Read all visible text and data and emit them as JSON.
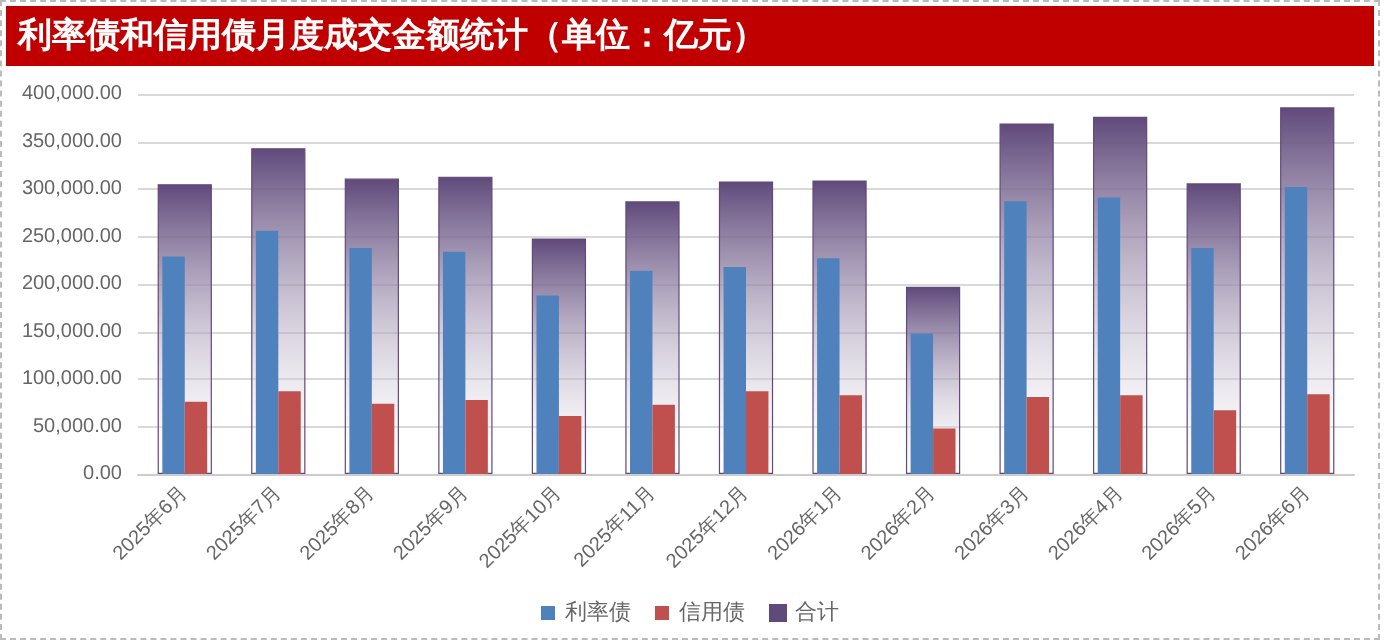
{
  "chart_data": {
    "type": "bar",
    "title": "利率债和信用债月度成交金额统计（单位：亿元）",
    "categories": [
      "2025年6月",
      "2025年7月",
      "2025年8月",
      "2025年9月",
      "2025年10月",
      "2025年11月",
      "2025年12月",
      "2026年1月",
      "2026年2月",
      "2026年3月",
      "2026年4月",
      "2026年5月",
      "2026年6月"
    ],
    "series": [
      {
        "name": "利率债",
        "color": "#4f81bd",
        "values": [
          229000,
          256000,
          238000,
          234000,
          188000,
          214000,
          218000,
          227000,
          148000,
          287000,
          291000,
          238000,
          302000
        ]
      },
      {
        "name": "信用债",
        "color": "#c0504d",
        "values": [
          76000,
          87000,
          74000,
          78000,
          61000,
          73000,
          87000,
          83000,
          48000,
          81000,
          83000,
          67000,
          84000
        ]
      },
      {
        "name": "合计",
        "color": "#604a7b",
        "values": [
          305000,
          343000,
          311000,
          313000,
          248000,
          287000,
          308000,
          309000,
          197000,
          369000,
          376000,
          306000,
          386000
        ]
      }
    ],
    "ylim": [
      0,
      400000
    ],
    "yticks": [
      {
        "value": 0,
        "label": "0.00"
      },
      {
        "value": 50000,
        "label": "50,000.00"
      },
      {
        "value": 100000,
        "label": "100,000.00"
      },
      {
        "value": 150000,
        "label": "150,000.00"
      },
      {
        "value": 200000,
        "label": "200,000.00"
      },
      {
        "value": 250000,
        "label": "250,000.00"
      },
      {
        "value": 300000,
        "label": "300,000.00"
      },
      {
        "value": 350000,
        "label": "350,000.00"
      },
      {
        "value": 400000,
        "label": "400,000.00"
      }
    ],
    "grid": "y",
    "legend": "bottom"
  }
}
